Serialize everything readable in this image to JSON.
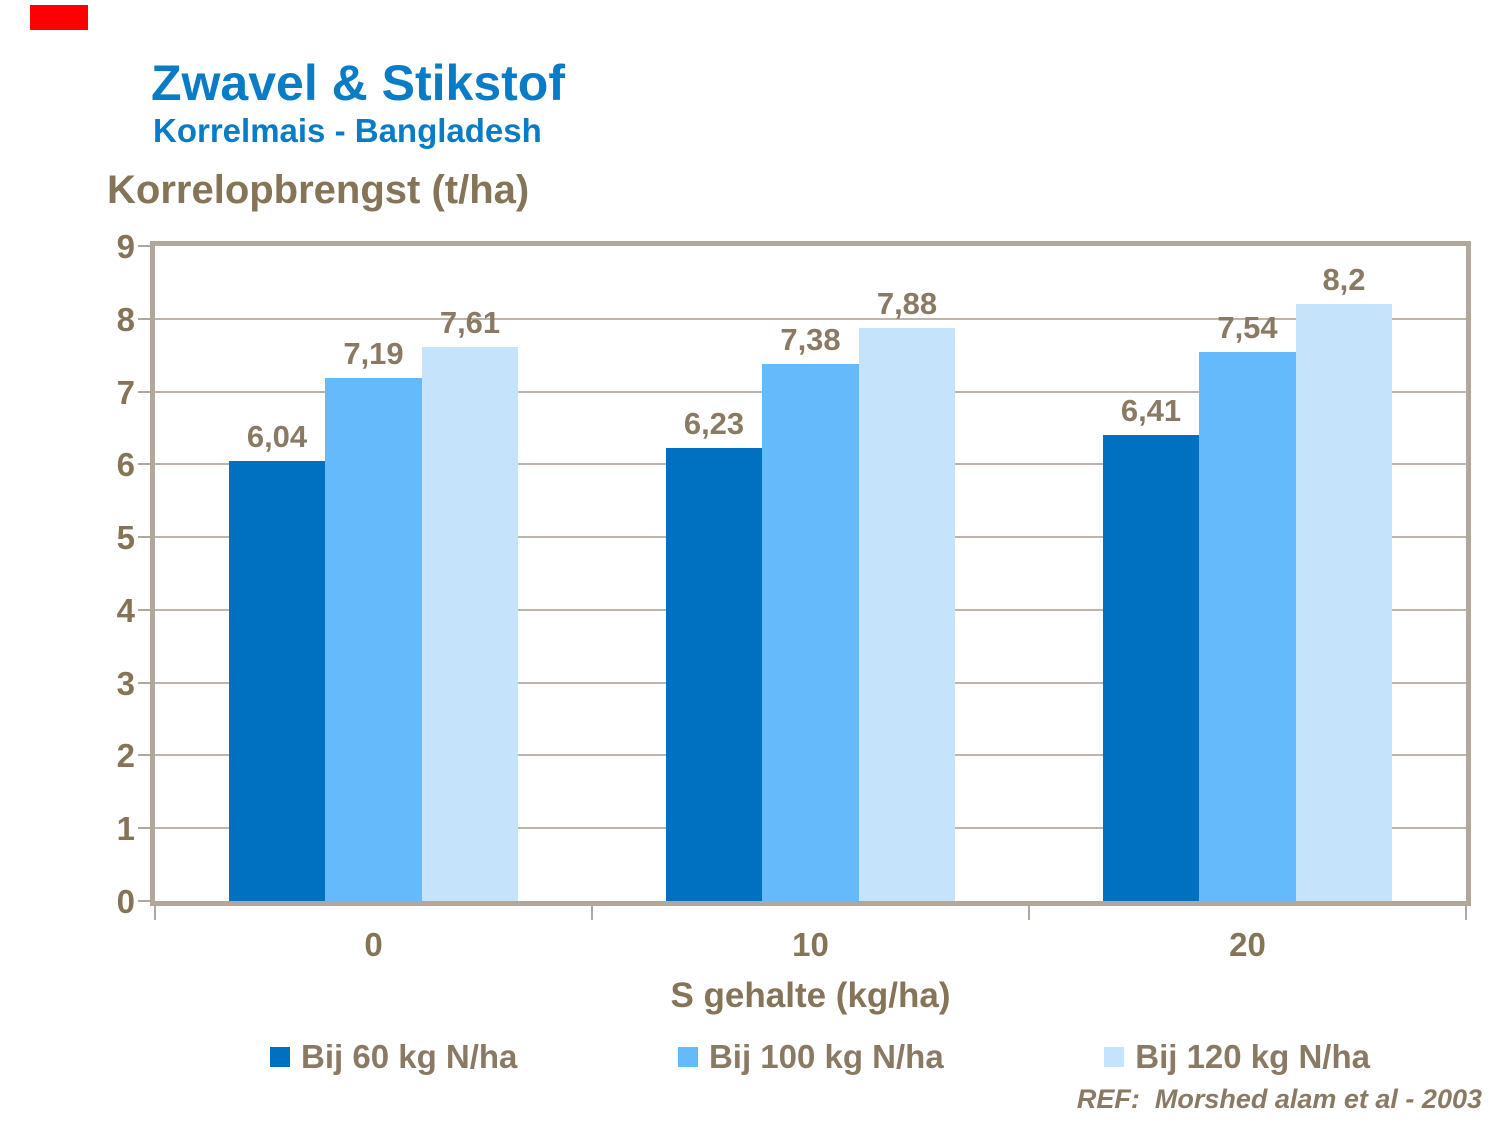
{
  "slide": {
    "title": "Zwavel & Stikstof",
    "subtitle": "Korrelmais - Bangladesh",
    "ref": "REF:  Morshed alam et al - 2003"
  },
  "colors": {
    "title_blue": "#0a7cc6",
    "text_brown": "#867458",
    "label_brown": "#8a7a63",
    "gridline": "#bfb4a8",
    "frame": "#b2a79b",
    "accent_red": "#ff0000"
  },
  "chart_data": {
    "type": "bar",
    "title": "",
    "ylabel": "Korrelopbrengst (t/ha)",
    "xlabel": "S gehalte (kg/ha)",
    "categories": [
      "0",
      "10",
      "20"
    ],
    "series": [
      {
        "name": "Bij 60 kg N/ha",
        "color": "#0070c0",
        "values": [
          6.04,
          6.23,
          6.41
        ],
        "labels": [
          "6,04",
          "6,23",
          "6,41"
        ]
      },
      {
        "name": "Bij 100 kg N/ha",
        "color": "#64bafb",
        "values": [
          7.19,
          7.38,
          7.54
        ],
        "labels": [
          "7,19",
          "7,38",
          "7,54"
        ]
      },
      {
        "name": "Bij 120 kg N/ha",
        "color": "#c6e3fc",
        "values": [
          7.61,
          7.88,
          8.2
        ],
        "labels": [
          "7,61",
          "7,88",
          "8,2"
        ]
      }
    ],
    "ylim": [
      0,
      9
    ],
    "yticks": [
      "0",
      "1",
      "2",
      "3",
      "4",
      "5",
      "6",
      "7",
      "8",
      "9"
    ],
    "grid": true,
    "legend_position": "bottom"
  }
}
